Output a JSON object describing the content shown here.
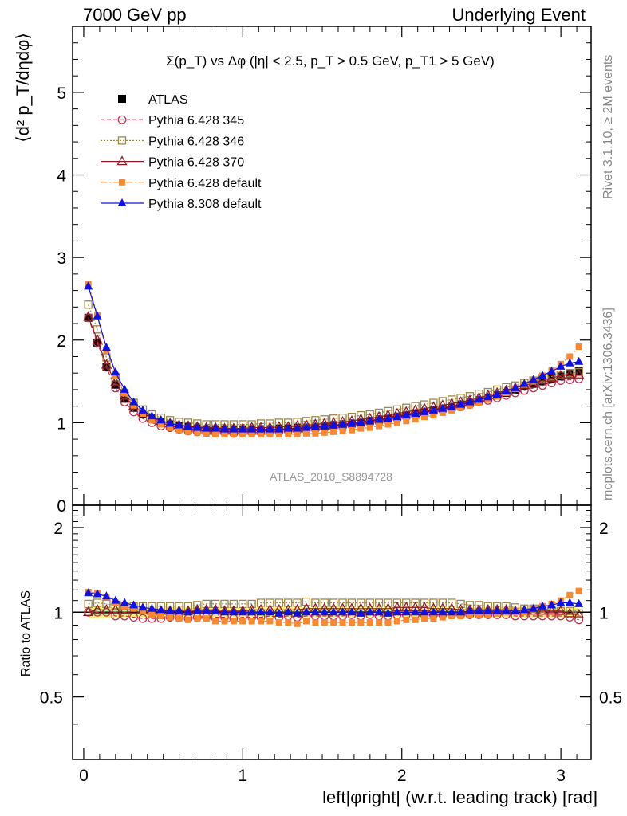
{
  "header": {
    "left": "7000 GeV pp",
    "right": "Underlying Event"
  },
  "side": {
    "rivet": "Rivet 3.1.10, ≥ 2M events",
    "mcplots": "mcplots.cern.ch [arXiv:1306.3436]"
  },
  "plot_title": "Σ(p_T) vs Δφ (|η| < 2.5, p_T > 0.5 GeV, p_T1 > 5 GeV)",
  "analysis_id": "ATLAS_2010_S8894728",
  "colors": {
    "atlas": "#000000",
    "py345": "#c0334f",
    "py346": "#9d8849",
    "py370": "#8e1a24",
    "py6def": "#f98830",
    "py8def": "#1010e0",
    "band_outer": "#fff25a",
    "band_inner": "#a6f0a6"
  },
  "chart_data": [
    {
      "type": "scatter",
      "ylabel": "⟨d² p_T/dηdφ⟩",
      "xlim": [
        -0.07,
        3.19
      ],
      "ylim": [
        0,
        5.8
      ],
      "yticks": [
        0,
        1,
        2,
        3,
        4,
        5
      ],
      "legend_position": "top-left",
      "series": [
        {
          "name": "ATLAS",
          "marker": "filled-square",
          "values": [
            2.27,
            1.97,
            1.67,
            1.46,
            1.29,
            1.18,
            1.1,
            1.05,
            1.01,
            0.98,
            0.96,
            0.95,
            0.93,
            0.92,
            0.92,
            0.92,
            0.92,
            0.92,
            0.92,
            0.92,
            0.92,
            0.93,
            0.93,
            0.94,
            0.94,
            0.95,
            0.96,
            0.97,
            0.98,
            0.99,
            1.01,
            1.02,
            1.04,
            1.06,
            1.07,
            1.09,
            1.11,
            1.13,
            1.15,
            1.17,
            1.19,
            1.22,
            1.24,
            1.27,
            1.3,
            1.33,
            1.36,
            1.4,
            1.44,
            1.47,
            1.5,
            1.53,
            1.56,
            1.59,
            1.62
          ]
        },
        {
          "name": "Pythia 6.428 345",
          "marker": "open-circle",
          "values": [
            2.27,
            1.97,
            1.67,
            1.42,
            1.25,
            1.13,
            1.05,
            1.0,
            0.96,
            0.94,
            0.92,
            0.9,
            0.89,
            0.88,
            0.88,
            0.88,
            0.87,
            0.88,
            0.88,
            0.88,
            0.89,
            0.89,
            0.9,
            0.9,
            0.91,
            0.92,
            0.93,
            0.94,
            0.95,
            0.97,
            0.98,
            1.0,
            1.01,
            1.03,
            1.05,
            1.07,
            1.09,
            1.11,
            1.13,
            1.15,
            1.17,
            1.19,
            1.22,
            1.25,
            1.27,
            1.3,
            1.33,
            1.36,
            1.39,
            1.42,
            1.45,
            1.48,
            1.51,
            1.52,
            1.53
          ]
        },
        {
          "name": "Pythia 6.428 346",
          "marker": "open-square",
          "values": [
            2.43,
            2.13,
            1.79,
            1.55,
            1.36,
            1.24,
            1.16,
            1.1,
            1.06,
            1.03,
            1.01,
            1.0,
            0.99,
            0.98,
            0.98,
            0.98,
            0.98,
            0.98,
            0.98,
            0.99,
            0.99,
            1.0,
            1.0,
            1.01,
            1.02,
            1.03,
            1.04,
            1.05,
            1.06,
            1.07,
            1.09,
            1.1,
            1.12,
            1.14,
            1.16,
            1.18,
            1.2,
            1.22,
            1.24,
            1.26,
            1.28,
            1.3,
            1.32,
            1.35,
            1.37,
            1.4,
            1.43,
            1.45,
            1.48,
            1.51,
            1.54,
            1.56,
            1.58,
            1.6,
            1.61
          ]
        },
        {
          "name": "Pythia 6.428 370",
          "marker": "open-triangle",
          "values": [
            2.28,
            2.0,
            1.7,
            1.49,
            1.32,
            1.2,
            1.12,
            1.06,
            1.02,
            0.99,
            0.97,
            0.96,
            0.95,
            0.94,
            0.94,
            0.93,
            0.93,
            0.93,
            0.94,
            0.94,
            0.94,
            0.95,
            0.95,
            0.96,
            0.97,
            0.98,
            0.99,
            1.0,
            1.01,
            1.02,
            1.04,
            1.05,
            1.07,
            1.09,
            1.11,
            1.13,
            1.15,
            1.17,
            1.19,
            1.21,
            1.23,
            1.25,
            1.27,
            1.3,
            1.33,
            1.36,
            1.39,
            1.42,
            1.45,
            1.48,
            1.51,
            1.54,
            1.57,
            1.58,
            1.58
          ]
        },
        {
          "name": "Pythia 6.428 default",
          "marker": "filled-square-small",
          "values": [
            2.68,
            2.3,
            1.88,
            1.57,
            1.36,
            1.21,
            1.11,
            1.03,
            0.98,
            0.94,
            0.91,
            0.89,
            0.88,
            0.87,
            0.86,
            0.86,
            0.86,
            0.86,
            0.86,
            0.86,
            0.86,
            0.86,
            0.86,
            0.86,
            0.87,
            0.87,
            0.88,
            0.89,
            0.9,
            0.91,
            0.93,
            0.94,
            0.96,
            0.98,
            1.0,
            1.02,
            1.04,
            1.07,
            1.09,
            1.12,
            1.15,
            1.18,
            1.21,
            1.24,
            1.28,
            1.32,
            1.36,
            1.41,
            1.46,
            1.51,
            1.57,
            1.63,
            1.71,
            1.8,
            1.92
          ]
        },
        {
          "name": "Pythia 8.308 default",
          "marker": "filled-triangle",
          "values": [
            2.65,
            2.29,
            1.91,
            1.61,
            1.4,
            1.25,
            1.15,
            1.08,
            1.03,
            0.99,
            0.97,
            0.95,
            0.94,
            0.93,
            0.93,
            0.92,
            0.92,
            0.92,
            0.92,
            0.92,
            0.92,
            0.92,
            0.93,
            0.93,
            0.94,
            0.95,
            0.96,
            0.97,
            0.98,
            0.99,
            1.0,
            1.02,
            1.04,
            1.05,
            1.07,
            1.09,
            1.11,
            1.13,
            1.15,
            1.17,
            1.19,
            1.22,
            1.25,
            1.28,
            1.31,
            1.34,
            1.38,
            1.42,
            1.47,
            1.52,
            1.57,
            1.62,
            1.68,
            1.72,
            1.74
          ]
        }
      ]
    },
    {
      "type": "scatter",
      "xlabel": "left|φright| (w.r.t. leading track) [rad]",
      "ylabel": "Ratio to ATLAS",
      "xlim": [
        -0.07,
        3.19
      ],
      "ylim": [
        0.3,
        2.4
      ],
      "log_y": true,
      "xticks": [
        0,
        1,
        2,
        3
      ],
      "yticks": [
        0.5,
        1,
        2
      ],
      "series": [
        {
          "name": "Pythia 6.428 345",
          "values": [
            1.0,
            1.0,
            1.0,
            0.97,
            0.97,
            0.96,
            0.95,
            0.95,
            0.95,
            0.96,
            0.96,
            0.95,
            0.96,
            0.96,
            0.96,
            0.96,
            0.95,
            0.96,
            0.96,
            0.96,
            0.97,
            0.96,
            0.97,
            0.96,
            0.97,
            0.97,
            0.97,
            0.97,
            0.97,
            0.98,
            0.97,
            0.98,
            0.97,
            0.97,
            0.98,
            0.98,
            0.98,
            0.98,
            0.98,
            0.98,
            0.98,
            0.98,
            0.98,
            0.98,
            0.98,
            0.98,
            0.98,
            0.97,
            0.97,
            0.97,
            0.97,
            0.97,
            0.97,
            0.96,
            0.94
          ]
        },
        {
          "name": "Pythia 6.428 346",
          "values": [
            1.07,
            1.08,
            1.07,
            1.06,
            1.05,
            1.05,
            1.05,
            1.05,
            1.05,
            1.05,
            1.05,
            1.05,
            1.06,
            1.07,
            1.07,
            1.07,
            1.07,
            1.07,
            1.07,
            1.08,
            1.08,
            1.08,
            1.08,
            1.08,
            1.09,
            1.08,
            1.08,
            1.08,
            1.08,
            1.08,
            1.08,
            1.08,
            1.08,
            1.08,
            1.08,
            1.08,
            1.08,
            1.08,
            1.08,
            1.08,
            1.08,
            1.07,
            1.06,
            1.06,
            1.05,
            1.05,
            1.05,
            1.04,
            1.03,
            1.03,
            1.03,
            1.02,
            1.01,
            1.01,
            0.99
          ]
        },
        {
          "name": "Pythia 6.428 370",
          "values": [
            1.0,
            1.02,
            1.02,
            1.02,
            1.02,
            1.02,
            1.02,
            1.01,
            1.01,
            1.01,
            1.01,
            1.01,
            1.02,
            1.02,
            1.02,
            1.01,
            1.01,
            1.01,
            1.02,
            1.02,
            1.02,
            1.02,
            1.02,
            1.02,
            1.03,
            1.03,
            1.03,
            1.03,
            1.03,
            1.03,
            1.03,
            1.03,
            1.03,
            1.03,
            1.04,
            1.04,
            1.04,
            1.04,
            1.03,
            1.03,
            1.03,
            1.02,
            1.02,
            1.02,
            1.02,
            1.02,
            1.02,
            1.01,
            1.01,
            1.01,
            1.01,
            1.01,
            1.01,
            0.99,
            0.98
          ]
        },
        {
          "name": "Pythia 6.428 default",
          "values": [
            1.18,
            1.17,
            1.13,
            1.08,
            1.05,
            1.03,
            1.01,
            0.98,
            0.97,
            0.96,
            0.95,
            0.94,
            0.95,
            0.95,
            0.93,
            0.93,
            0.93,
            0.93,
            0.93,
            0.93,
            0.93,
            0.92,
            0.92,
            0.91,
            0.93,
            0.92,
            0.92,
            0.92,
            0.92,
            0.92,
            0.92,
            0.92,
            0.92,
            0.92,
            0.93,
            0.94,
            0.94,
            0.95,
            0.95,
            0.96,
            0.97,
            0.97,
            0.98,
            0.98,
            0.98,
            0.99,
            1.0,
            1.01,
            1.01,
            1.03,
            1.05,
            1.07,
            1.1,
            1.15,
            1.19
          ]
        },
        {
          "name": "Pythia 8.308 default",
          "values": [
            1.17,
            1.16,
            1.14,
            1.1,
            1.08,
            1.06,
            1.04,
            1.03,
            1.02,
            1.01,
            1.01,
            1.0,
            1.01,
            1.01,
            1.01,
            1.0,
            1.0,
            1.0,
            1.0,
            1.0,
            1.0,
            0.99,
            1.0,
            0.99,
            1.0,
            1.0,
            1.0,
            1.0,
            1.0,
            1.0,
            0.99,
            1.0,
            1.0,
            0.99,
            1.0,
            1.0,
            1.0,
            1.0,
            1.0,
            1.0,
            1.0,
            1.0,
            1.01,
            1.01,
            1.01,
            1.01,
            1.01,
            1.01,
            1.02,
            1.03,
            1.05,
            1.06,
            1.08,
            1.08,
            1.07
          ]
        }
      ],
      "band_halfwidth": [
        0.05,
        0.05,
        0.05,
        0.04,
        0.04,
        0.04,
        0.04,
        0.04,
        0.04,
        0.04,
        0.04,
        0.04,
        0.04,
        0.04,
        0.04,
        0.04,
        0.04,
        0.04,
        0.04,
        0.04,
        0.04,
        0.04,
        0.04,
        0.04,
        0.04,
        0.04,
        0.04,
        0.04,
        0.04,
        0.04,
        0.04,
        0.04,
        0.04,
        0.04,
        0.04,
        0.04,
        0.04,
        0.04,
        0.04,
        0.04,
        0.04,
        0.04,
        0.04,
        0.04,
        0.04,
        0.04,
        0.04,
        0.04,
        0.04,
        0.04,
        0.04,
        0.04,
        0.04,
        0.04,
        0.04
      ]
    }
  ]
}
